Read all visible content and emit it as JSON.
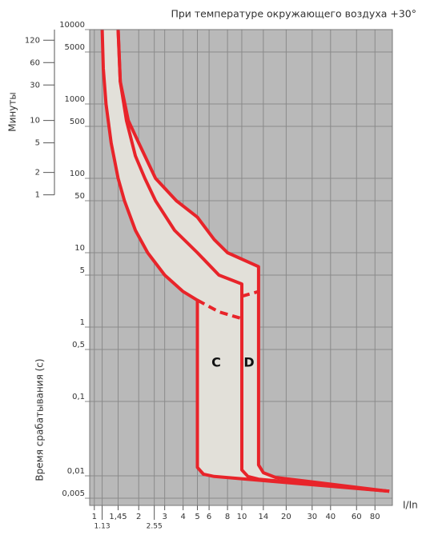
{
  "chart_data": {
    "type": "line",
    "title": "При температуре окружающего воздуха +30°",
    "ylabel": "Время срабатывания (с)",
    "y2label": "Минуты",
    "xlabel": "I/In",
    "annotations": [
      "C",
      "D"
    ],
    "log_x": true,
    "log_y": true,
    "grid": true,
    "background": "#b9b9b9",
    "fill_color": "#e2e0d9",
    "xlim": [
      0.93,
      105
    ],
    "xticks": [
      1,
      {
        "value": 1.45,
        "label": "1,45"
      },
      2,
      3,
      4,
      5,
      6,
      8,
      10,
      14,
      20,
      30,
      40,
      60,
      80
    ],
    "xticks_extra": [
      1.13,
      2.55
    ],
    "ylim": [
      0.004,
      10000
    ],
    "yticks": [
      10000,
      5000,
      1000,
      500,
      100,
      50,
      10,
      5,
      1,
      {
        "value": 0.5,
        "label": "0,5"
      },
      {
        "value": 0.1,
        "label": "0,1"
      },
      {
        "value": 0.01,
        "label": "0,01"
      },
      {
        "value": 0.005,
        "label": "0,005"
      }
    ],
    "y2lim": [
      6.67e-05,
      166.667
    ],
    "y2ticks": [
      120,
      60,
      30,
      10,
      5,
      2,
      1
    ],
    "series": [
      {
        "color": "#e8242a",
        "dashed": false,
        "x": [
          1.13,
          1.15,
          1.2,
          1.3,
          1.45,
          1.6,
          1.9,
          2.3,
          3,
          4,
          5,
          5,
          5.5,
          6.5,
          100
        ],
        "values": [
          10000,
          3000,
          1000,
          300,
          100,
          50,
          20,
          10,
          5,
          3,
          2.3,
          0.013,
          0.0105,
          0.0098,
          0.0062
        ]
      },
      {
        "color": "#e8242a",
        "dashed": true,
        "x": [
          5,
          7,
          10
        ],
        "values": [
          2.3,
          1.6,
          1.3
        ]
      },
      {
        "color": "#e8242a",
        "dashed": false,
        "x": [
          1.45,
          1.5,
          1.65,
          1.9,
          2.2,
          2.6,
          3.5,
          5,
          7,
          10,
          10,
          11,
          13,
          100
        ],
        "values": [
          10000,
          2000,
          600,
          200,
          100,
          50,
          20,
          10,
          5,
          3.8,
          0.012,
          0.0098,
          0.009,
          0.0062
        ]
      },
      {
        "color": "#e8242a",
        "dashed": false,
        "x": [
          1.45,
          1.5,
          1.7,
          2,
          2.6,
          3.6,
          5,
          6.5,
          8,
          13,
          13,
          14,
          17,
          100
        ],
        "values": [
          10000,
          2000,
          600,
          300,
          100,
          50,
          30,
          15,
          10,
          6.5,
          0.014,
          0.011,
          0.0095,
          0.0062
        ]
      },
      {
        "color": "#e8242a",
        "dashed": true,
        "x": [
          10,
          13
        ],
        "values": [
          2.6,
          3
        ]
      }
    ]
  }
}
